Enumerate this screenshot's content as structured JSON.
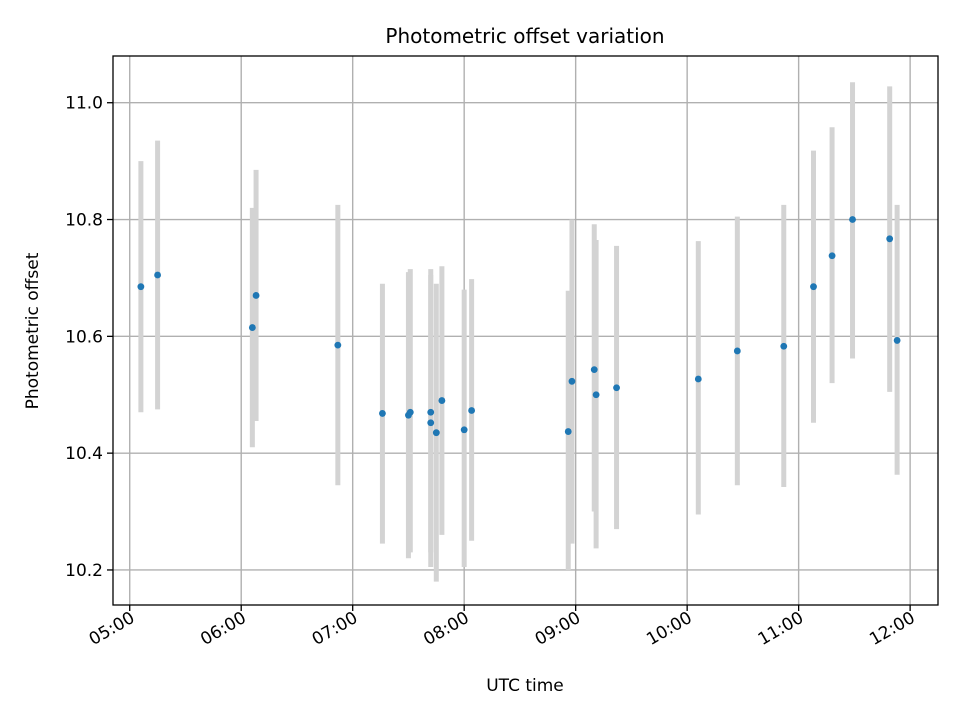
{
  "chart_data": {
    "type": "scatter",
    "title": "Photometric offset variation",
    "xlabel": "UTC time",
    "ylabel": "Photometric offset",
    "x_ticks": [
      "05:00",
      "06:00",
      "07:00",
      "08:00",
      "09:00",
      "10:00",
      "11:00",
      "12:00"
    ],
    "y_ticks": [
      "10.2",
      "10.4",
      "10.6",
      "10.8",
      "11.0"
    ],
    "xlim": [
      "04:51",
      "12:15"
    ],
    "ylim": [
      10.14,
      11.08
    ],
    "grid": true,
    "colors": {
      "point": "#1f77b4",
      "errorbar": "#d3d3d3",
      "grid": "#b0b0b0"
    },
    "points": [
      {
        "x": "05:06",
        "y": 10.685,
        "ylow": 10.47,
        "yhigh": 10.9
      },
      {
        "x": "05:15",
        "y": 10.705,
        "ylow": 10.475,
        "yhigh": 10.935
      },
      {
        "x": "06:06",
        "y": 10.615,
        "ylow": 10.41,
        "yhigh": 10.82
      },
      {
        "x": "06:08",
        "y": 10.67,
        "ylow": 10.455,
        "yhigh": 10.885
      },
      {
        "x": "06:52",
        "y": 10.585,
        "ylow": 10.345,
        "yhigh": 10.825
      },
      {
        "x": "07:16",
        "y": 10.468,
        "ylow": 10.245,
        "yhigh": 10.69
      },
      {
        "x": "07:30",
        "y": 10.465,
        "ylow": 10.22,
        "yhigh": 10.71
      },
      {
        "x": "07:31",
        "y": 10.47,
        "ylow": 10.23,
        "yhigh": 10.715
      },
      {
        "x": "07:42",
        "y": 10.452,
        "ylow": 10.205,
        "yhigh": 10.705
      },
      {
        "x": "07:42",
        "y": 10.47,
        "ylow": 10.23,
        "yhigh": 10.715
      },
      {
        "x": "07:45",
        "y": 10.435,
        "ylow": 10.18,
        "yhigh": 10.69
      },
      {
        "x": "07:48",
        "y": 10.49,
        "ylow": 10.26,
        "yhigh": 10.72
      },
      {
        "x": "08:00",
        "y": 10.44,
        "ylow": 10.205,
        "yhigh": 10.68
      },
      {
        "x": "08:04",
        "y": 10.473,
        "ylow": 10.25,
        "yhigh": 10.698
      },
      {
        "x": "08:56",
        "y": 10.437,
        "ylow": 10.2,
        "yhigh": 10.678
      },
      {
        "x": "08:58",
        "y": 10.523,
        "ylow": 10.245,
        "yhigh": 10.8
      },
      {
        "x": "09:10",
        "y": 10.543,
        "ylow": 10.3,
        "yhigh": 10.792
      },
      {
        "x": "09:11",
        "y": 10.5,
        "ylow": 10.237,
        "yhigh": 10.765
      },
      {
        "x": "09:22",
        "y": 10.512,
        "ylow": 10.27,
        "yhigh": 10.755
      },
      {
        "x": "10:06",
        "y": 10.527,
        "ylow": 10.295,
        "yhigh": 10.763
      },
      {
        "x": "10:27",
        "y": 10.575,
        "ylow": 10.345,
        "yhigh": 10.805
      },
      {
        "x": "10:52",
        "y": 10.583,
        "ylow": 10.342,
        "yhigh": 10.825
      },
      {
        "x": "11:08",
        "y": 10.685,
        "ylow": 10.452,
        "yhigh": 10.918
      },
      {
        "x": "11:18",
        "y": 10.738,
        "ylow": 10.52,
        "yhigh": 10.958
      },
      {
        "x": "11:29",
        "y": 10.8,
        "ylow": 10.562,
        "yhigh": 11.035
      },
      {
        "x": "11:49",
        "y": 10.767,
        "ylow": 10.505,
        "yhigh": 11.028
      },
      {
        "x": "11:53",
        "y": 10.593,
        "ylow": 10.363,
        "yhigh": 10.825
      }
    ]
  }
}
